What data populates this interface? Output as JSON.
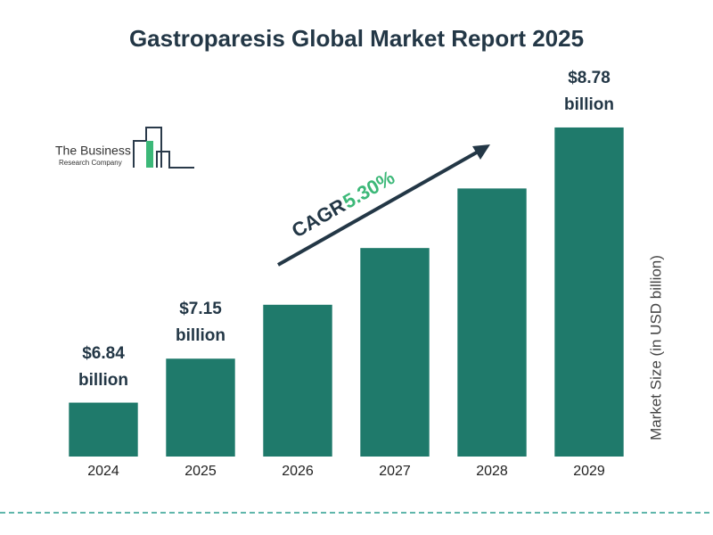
{
  "chart_data": {
    "type": "bar",
    "title": "Gastroparesis Global Market Report 2025",
    "categories": [
      "2024",
      "2025",
      "2026",
      "2027",
      "2028",
      "2029"
    ],
    "values": [
      6.84,
      7.15,
      7.53,
      7.93,
      8.35,
      8.78
    ],
    "value_labels": [
      "$6.84 billion",
      "$7.15 billion",
      null,
      null,
      null,
      "$8.78 billion"
    ],
    "color": "#1f7a6b",
    "ylim": [
      6.46,
      9.05
    ],
    "y_label": "Market Size (in USD billion)",
    "annotation": {
      "label": "CAGR",
      "value": "5.30%"
    }
  },
  "logo": {
    "line1": "The Business",
    "line2": "Research Company"
  }
}
